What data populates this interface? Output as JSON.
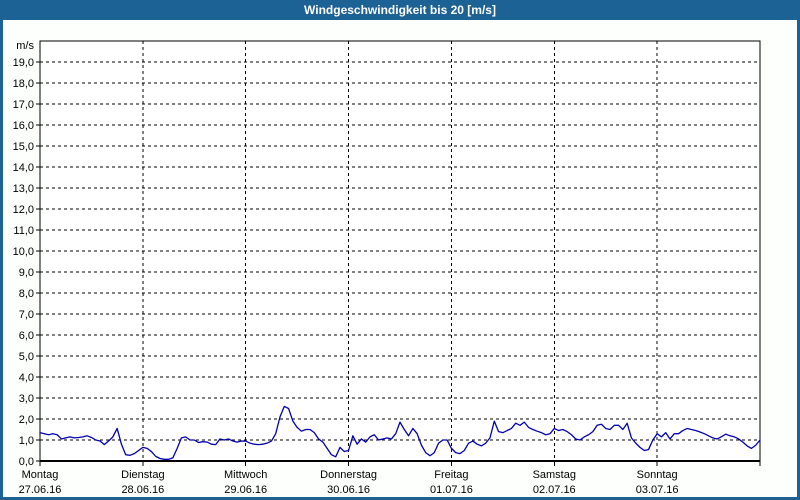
{
  "window": {
    "title": "Windgeschwindigkeit bis 20 [m/s]"
  },
  "colors": {
    "title_bar": "#1d6294",
    "frame": "#1d6294",
    "title_text": "#ffffff",
    "page_background": "#fdfffd",
    "plot_background": "#ffffff",
    "axis": "#000000",
    "grid": "#000000",
    "label_text": "#000000",
    "series": "#0000b4"
  },
  "chart_data": {
    "type": "line",
    "title": "Windgeschwindigkeit bis 20 [m/s]",
    "ylabel": "m/s",
    "xlabel": "",
    "ylim": [
      0,
      20
    ],
    "grid": "dashed horizontal every 1.0 m/s, dashed vertical at each day boundary",
    "legend_position": "none",
    "ytick_values": [
      0,
      1,
      2,
      3,
      4,
      5,
      6,
      7,
      8,
      9,
      10,
      11,
      12,
      13,
      14,
      15,
      16,
      17,
      18,
      19
    ],
    "ytick_labels": [
      "0,0",
      "1,0",
      "2,0",
      "3,0",
      "4,0",
      "5,0",
      "6,0",
      "7,0",
      "8,0",
      "9,0",
      "10,0",
      "11,0",
      "12,0",
      "13,0",
      "14,0",
      "15,0",
      "16,0",
      "17,0",
      "18,0",
      "19,0"
    ],
    "x_axis": {
      "days": [
        {
          "label": "Montag",
          "date": "27.06.16"
        },
        {
          "label": "Dienstag",
          "date": "28.06.16"
        },
        {
          "label": "Mittwoch",
          "date": "29.06.16"
        },
        {
          "label": "Donnerstag",
          "date": "30.06.16"
        },
        {
          "label": "Freitag",
          "date": "01.07.16"
        },
        {
          "label": "Samstag",
          "date": "02.07.16"
        },
        {
          "label": "Sonntag",
          "date": "03.07.16"
        }
      ],
      "points_per_day": 24
    },
    "series": [
      {
        "name": "Windgeschwindigkeit",
        "unit": "m/s",
        "values": [
          1.35,
          1.3,
          1.25,
          1.3,
          1.25,
          1.05,
          1.1,
          1.15,
          1.1,
          1.12,
          1.15,
          1.2,
          1.12,
          1.0,
          0.95,
          0.78,
          0.95,
          1.15,
          1.55,
          0.8,
          0.3,
          0.27,
          0.35,
          0.5,
          0.65,
          0.6,
          0.45,
          0.22,
          0.12,
          0.08,
          0.08,
          0.15,
          0.6,
          1.1,
          1.15,
          1.0,
          1.0,
          0.88,
          0.92,
          0.9,
          0.8,
          0.78,
          1.05,
          1.0,
          1.05,
          0.95,
          0.9,
          0.95,
          0.95,
          0.85,
          0.8,
          0.78,
          0.8,
          0.85,
          0.95,
          1.3,
          2.1,
          2.6,
          2.5,
          1.9,
          1.6,
          1.42,
          1.5,
          1.5,
          1.35,
          1.05,
          0.9,
          0.6,
          0.3,
          0.2,
          0.65,
          0.45,
          0.5,
          1.2,
          0.8,
          1.05,
          0.9,
          1.15,
          1.25,
          1.0,
          1.05,
          1.1,
          1.05,
          1.3,
          1.85,
          1.5,
          1.2,
          1.55,
          1.3,
          0.75,
          0.4,
          0.25,
          0.4,
          0.85,
          1.0,
          1.0,
          0.6,
          0.4,
          0.35,
          0.5,
          0.85,
          0.95,
          0.8,
          0.72,
          0.85,
          1.1,
          1.9,
          1.4,
          1.35,
          1.45,
          1.55,
          1.8,
          1.7,
          1.85,
          1.6,
          1.5,
          1.42,
          1.35,
          1.25,
          1.3,
          1.55,
          1.45,
          1.5,
          1.4,
          1.25,
          1.05,
          1.0,
          1.15,
          1.25,
          1.4,
          1.7,
          1.75,
          1.55,
          1.5,
          1.7,
          1.7,
          1.5,
          1.8,
          1.1,
          0.85,
          0.65,
          0.5,
          0.55,
          1.0,
          1.3,
          1.15,
          1.35,
          1.05,
          1.3,
          1.3,
          1.45,
          1.55,
          1.5,
          1.45,
          1.38,
          1.3,
          1.2,
          1.1,
          1.05,
          1.15,
          1.28,
          1.2,
          1.15,
          1.05,
          0.9,
          0.72,
          0.6,
          0.75,
          1.0
        ]
      }
    ]
  }
}
